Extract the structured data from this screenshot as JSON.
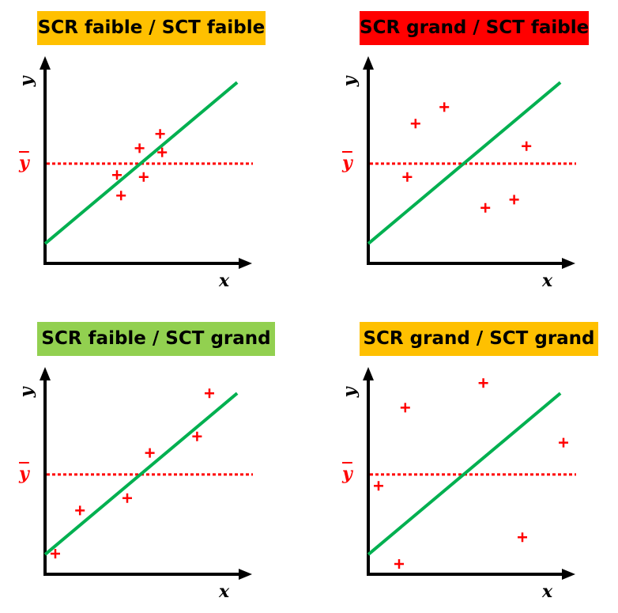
{
  "colors": {
    "axis": "#000000",
    "fit_line": "#00b050",
    "points": "#ff0000",
    "mean_line": "#ff0000"
  },
  "panels": [
    {
      "title": "SCR faible / SCT faible",
      "title_bg": "#ffc000",
      "x_label": "x",
      "y_label": "y",
      "mean_label": "y",
      "mean_y": 4.85,
      "fit_line": [
        [
          0,
          0.96
        ],
        [
          9.35,
          8.8
        ]
      ],
      "points": [
        [
          3.5,
          4.3
        ],
        [
          3.7,
          3.3
        ],
        [
          4.6,
          5.6
        ],
        [
          4.8,
          4.2
        ],
        [
          5.6,
          6.3
        ],
        [
          5.7,
          5.4
        ]
      ]
    },
    {
      "title": "SCR grand / SCT faible",
      "title_bg": "#ff0000",
      "x_label": "x",
      "y_label": "y",
      "mean_label": "y",
      "mean_y": 4.85,
      "fit_line": [
        [
          0,
          0.96
        ],
        [
          9.35,
          8.8
        ]
      ],
      "points": [
        [
          2.3,
          6.8
        ],
        [
          3.7,
          7.6
        ],
        [
          1.9,
          4.2
        ],
        [
          7.7,
          5.7
        ],
        [
          5.7,
          2.7
        ],
        [
          7.1,
          3.1
        ]
      ]
    },
    {
      "title": "SCR faible / SCT grand",
      "title_bg": "#92d050",
      "x_label": "x",
      "y_label": "y",
      "mean_label": "y",
      "mean_y": 4.85,
      "fit_line": [
        [
          0,
          0.96
        ],
        [
          9.35,
          8.8
        ]
      ],
      "points": [
        [
          8.0,
          8.8
        ],
        [
          7.4,
          6.7
        ],
        [
          5.1,
          5.9
        ],
        [
          4.0,
          3.7
        ],
        [
          1.7,
          3.1
        ],
        [
          0.5,
          1.0
        ]
      ]
    },
    {
      "title": "SCR grand / SCT grand",
      "title_bg": "#ffc000",
      "x_label": "x",
      "y_label": "y",
      "mean_label": "y",
      "mean_y": 4.85,
      "fit_line": [
        [
          0,
          0.96
        ],
        [
          9.35,
          8.8
        ]
      ],
      "points": [
        [
          1.8,
          8.1
        ],
        [
          5.6,
          9.3
        ],
        [
          9.5,
          6.4
        ],
        [
          0.5,
          4.3
        ],
        [
          7.5,
          1.8
        ],
        [
          1.5,
          0.5
        ]
      ]
    }
  ]
}
